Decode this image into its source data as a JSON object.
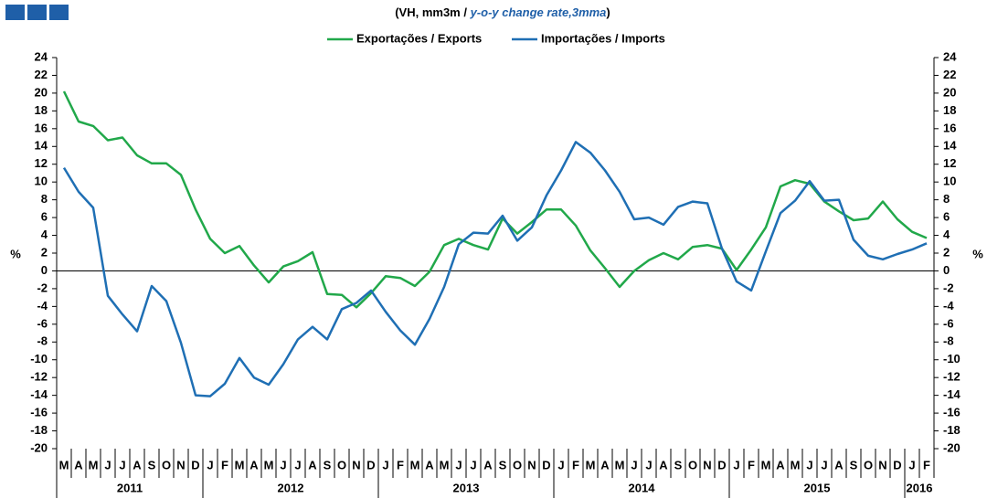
{
  "chart_data": {
    "type": "line",
    "title_parts": [
      "(VH, mm3m / ",
      "y-o-y change rate,3mma",
      ")"
    ],
    "y_label": "%",
    "y2_label": "%",
    "categories": [
      "M",
      "A",
      "M",
      "J",
      "J",
      "A",
      "S",
      "O",
      "N",
      "D",
      "J",
      "F",
      "M",
      "A",
      "M",
      "J",
      "J",
      "A",
      "S",
      "O",
      "N",
      "D",
      "J",
      "F",
      "M",
      "A",
      "M",
      "J",
      "J",
      "A",
      "S",
      "O",
      "N",
      "D",
      "J",
      "F",
      "M",
      "A",
      "M",
      "J",
      "J",
      "A",
      "S",
      "O",
      "N",
      "D",
      "J",
      "F",
      "M",
      "A",
      "M",
      "J",
      "J",
      "A",
      "S",
      "O",
      "N",
      "D",
      "J",
      "F"
    ],
    "year_labels": [
      "2011",
      "2012",
      "2013",
      "2014",
      "2015",
      "2016"
    ],
    "series": [
      {
        "name": "Exportações / Exports",
        "color": "#21a84a",
        "values": [
          20.2,
          16.8,
          16.3,
          14.7,
          15.0,
          13.0,
          12.1,
          12.1,
          10.8,
          6.9,
          3.6,
          2.0,
          2.8,
          0.6,
          -1.3,
          0.5,
          1.1,
          2.1,
          -2.6,
          -2.7,
          -4.1,
          -2.5,
          -0.6,
          -0.8,
          -1.7,
          -0.1,
          2.9,
          3.6,
          2.9,
          2.4,
          5.9,
          4.2,
          5.5,
          6.9,
          6.9,
          5.1,
          2.3,
          0.3,
          -1.8,
          0.0,
          1.2,
          2.0,
          1.3,
          2.7,
          2.9,
          2.5,
          0.1,
          2.4,
          4.9,
          9.5,
          10.2,
          9.8,
          7.8,
          6.7,
          5.7,
          5.9,
          7.8,
          5.8,
          4.4,
          3.7
        ]
      },
      {
        "name": "Importações / Imports",
        "color": "#1f6fb4",
        "values": [
          11.6,
          8.9,
          7.1,
          -2.8,
          -4.9,
          -6.8,
          -1.7,
          -3.4,
          -8.1,
          -14.0,
          -14.1,
          -12.7,
          -9.8,
          -12.0,
          -12.8,
          -10.5,
          -7.7,
          -6.3,
          -7.7,
          -4.3,
          -3.6,
          -2.2,
          -4.6,
          -6.7,
          -8.3,
          -5.4,
          -1.8,
          3.0,
          4.3,
          4.2,
          6.2,
          3.4,
          4.9,
          8.5,
          11.3,
          14.5,
          13.3,
          11.3,
          8.9,
          5.8,
          6.0,
          5.2,
          7.2,
          7.8,
          7.6,
          2.5,
          -1.2,
          -2.2,
          2.2,
          6.5,
          7.9,
          10.1,
          7.9,
          8.0,
          3.5,
          1.7,
          1.3,
          1.9,
          2.4,
          3.1
        ]
      }
    ],
    "ylim": [
      -20,
      24
    ],
    "yticks": [
      -20,
      -18,
      -16,
      -14,
      -12,
      -10,
      -8,
      -6,
      -4,
      -2,
      0,
      2,
      4,
      6,
      8,
      10,
      12,
      14,
      16,
      18,
      20,
      22,
      24
    ],
    "y2lim": [
      -20,
      24
    ],
    "y2ticks": [
      -20,
      -18,
      -16,
      -14,
      -12,
      -10,
      -8,
      -6,
      -4,
      -2,
      0,
      2,
      4,
      6,
      8,
      10,
      12,
      14,
      16,
      18,
      20,
      22,
      24
    ]
  }
}
